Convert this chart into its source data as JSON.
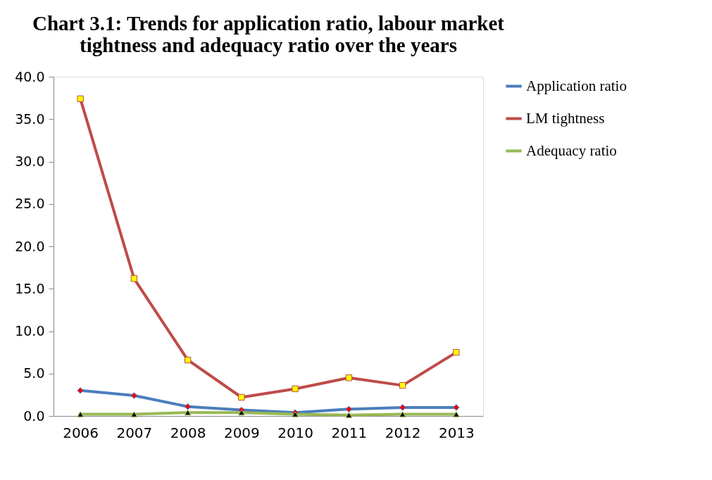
{
  "chart_data": {
    "type": "line",
    "title": "Chart 3.1: Trends for application ratio, labour market tightness and adequacy ratio over the years",
    "categories": [
      "2006",
      "2007",
      "2008",
      "2009",
      "2010",
      "2011",
      "2012",
      "2013"
    ],
    "series": [
      {
        "name": "Application ratio",
        "color": "#4a7ebb",
        "marker": "diamond",
        "values": [
          3.0,
          2.4,
          1.1,
          0.7,
          0.4,
          0.8,
          1.0,
          1.0
        ]
      },
      {
        "name": "LM tightness",
        "color": "#be4b48",
        "marker": "square",
        "values": [
          37.4,
          16.2,
          6.6,
          2.2,
          3.2,
          4.5,
          3.6,
          7.5
        ]
      },
      {
        "name": "Adequacy ratio",
        "color": "#98b954",
        "marker": "triangle",
        "values": [
          0.2,
          0.2,
          0.4,
          0.4,
          0.2,
          0.1,
          0.2,
          0.2
        ]
      }
    ],
    "ylim": [
      0,
      40
    ],
    "yticks": [
      {
        "value": 0,
        "label": "0.0"
      },
      {
        "value": 5,
        "label": "5.0"
      },
      {
        "value": 10,
        "label": "10.0"
      },
      {
        "value": 15,
        "label": "15.0"
      },
      {
        "value": 20,
        "label": "20.0"
      },
      {
        "value": 25,
        "label": "25.0"
      },
      {
        "value": 30,
        "label": "30.0"
      },
      {
        "value": 35,
        "label": "35.0"
      },
      {
        "value": 40,
        "label": "40.0"
      }
    ],
    "grid": false,
    "legend": "right",
    "line_style": "solid"
  }
}
